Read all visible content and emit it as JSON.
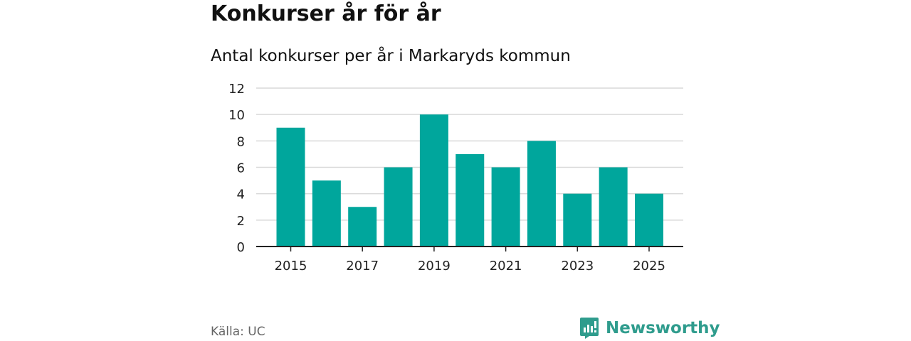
{
  "header": {
    "title": "Konkurser år för år",
    "subtitle": "Antal konkurser per år i Markaryds kommun"
  },
  "footer": {
    "source": "Källa: UC",
    "brand": "Newsworthy"
  },
  "colors": {
    "bar": "#00a69c",
    "grid": "#d9d9d9",
    "axis": "#222222",
    "brand": "#2f9c8d"
  },
  "chart_data": {
    "type": "bar",
    "categories": [
      "2015",
      "2016",
      "2017",
      "2018",
      "2019",
      "2020",
      "2021",
      "2022",
      "2023",
      "2024",
      "2025"
    ],
    "values": [
      9,
      5,
      3,
      6,
      10,
      7,
      6,
      8,
      4,
      6,
      4
    ],
    "x_tick_labels": [
      "2015",
      "2017",
      "2019",
      "2021",
      "2023",
      "2025"
    ],
    "y_ticks": [
      0,
      2,
      4,
      6,
      8,
      10,
      12
    ],
    "ylim": [
      0,
      12
    ],
    "grid": true,
    "legend": "none",
    "title": "Konkurser år för år",
    "subtitle": "Antal konkurser per år i Markaryds kommun"
  }
}
